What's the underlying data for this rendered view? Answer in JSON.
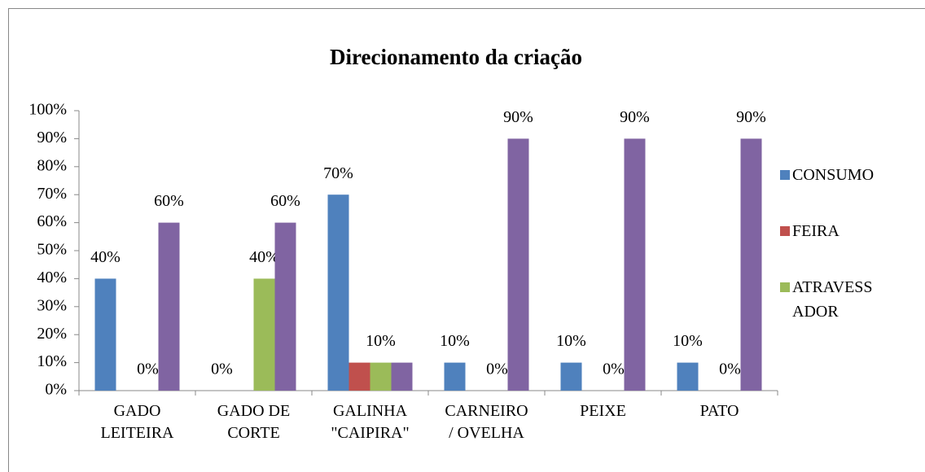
{
  "chart_data": {
    "type": "bar",
    "title": "Direcionamento  da criação",
    "categories": [
      "GADO LEITEIRA",
      "GADO DE CORTE",
      "GALINHA \"CAIPIRA\"",
      "CARNEIRO / OVELHA",
      "PEIXE",
      "PATO"
    ],
    "series": [
      {
        "name": "CONSUMO",
        "color": "#4f81bd",
        "values": [
          40,
          0,
          70,
          10,
          10,
          10
        ],
        "value_labels": [
          "40%",
          "0%",
          "70%",
          "10%",
          "10%",
          "10%"
        ]
      },
      {
        "name": "FEIRA",
        "color": "#c0504d",
        "values": [
          0,
          0,
          10,
          0,
          0,
          0
        ]
      },
      {
        "name": "ATRAVESSADOR",
        "color": "#9bbb59",
        "values": [
          0,
          40,
          10,
          0,
          0,
          0
        ],
        "value_labels": [
          "0%",
          "40%",
          "10%",
          "0%",
          "0%",
          "0%"
        ]
      },
      {
        "color": "#8064a2",
        "values": [
          60,
          60,
          10,
          90,
          90,
          90
        ],
        "value_labels": [
          "60%",
          "60%",
          null,
          "90%",
          "90%",
          "90%"
        ]
      }
    ],
    "ylim": [
      0,
      100
    ],
    "yticks": [
      {
        "value": 0,
        "label": "0%"
      },
      {
        "value": 10,
        "label": "10%"
      },
      {
        "value": 20,
        "label": "20%"
      },
      {
        "value": 30,
        "label": "30%"
      },
      {
        "value": 40,
        "label": "40%"
      },
      {
        "value": 50,
        "label": "50%"
      },
      {
        "value": 60,
        "label": "60%"
      },
      {
        "value": 70,
        "label": "70%"
      },
      {
        "value": 80,
        "label": "80%"
      },
      {
        "value": 90,
        "label": "90%"
      },
      {
        "value": 100,
        "label": "100%"
      }
    ],
    "grid": false
  }
}
